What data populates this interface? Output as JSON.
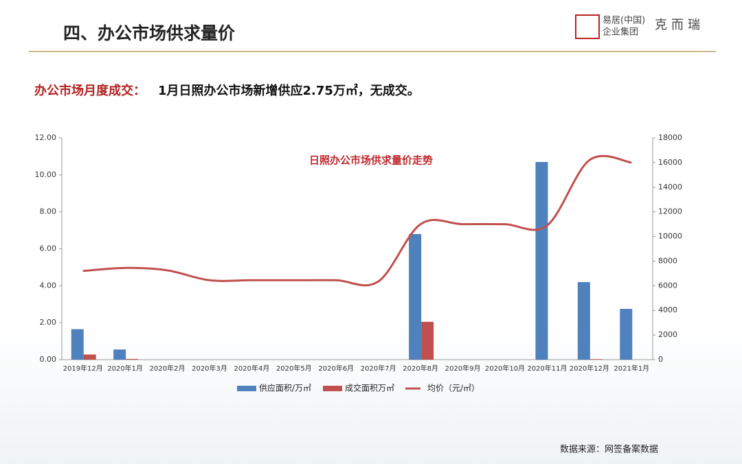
{
  "header": {
    "title": "四、办公市场供求量价",
    "logo_cn_1": "易居(中国)",
    "logo_cn_2": "企业集团",
    "logo_brand": "克而瑞"
  },
  "subtitle": {
    "lead": "办公市场月度成交：",
    "text": "1月日照办公市场新增供应2.75万㎡，无成交。"
  },
  "source": "数据来源：网签备案数据",
  "chart_data": {
    "type": "bar",
    "title": "日照办公市场供求量价走势",
    "categories": [
      "2019年12月",
      "2020年1月",
      "2020年2月",
      "2020年3月",
      "2020年4月",
      "2020年5月",
      "2020年6月",
      "2020年7月",
      "2020年8月",
      "2020年9月",
      "2020年10月",
      "2020年11月",
      "2020年12月",
      "2021年1月"
    ],
    "series": [
      {
        "name": "供应面积/万㎡",
        "color": "#4f81bd",
        "values": [
          1.65,
          0.55,
          0,
          0,
          0,
          0,
          0,
          0,
          6.8,
          0,
          0,
          10.7,
          4.2,
          2.75
        ]
      },
      {
        "name": "成交面积万㎡",
        "color": "#c0504d",
        "values": [
          0.28,
          0.04,
          0,
          0,
          0,
          0,
          0,
          0,
          2.05,
          0,
          0,
          0,
          0.03,
          0
        ]
      },
      {
        "name": "均价（元/㎡）",
        "color": "#c0504d",
        "type": "line",
        "axis": "y2",
        "values": [
          7200,
          7450,
          7250,
          6450,
          6450,
          6450,
          6450,
          6350,
          11000,
          11000,
          11000,
          10900,
          16200,
          16000
        ]
      }
    ],
    "ylim": [
      0,
      12
    ],
    "yticks": [
      {
        "value": 0,
        "label": "0.00"
      },
      {
        "value": 2,
        "label": "2.00"
      },
      {
        "value": 4,
        "label": "4.00"
      },
      {
        "value": 6,
        "label": "6.00"
      },
      {
        "value": 8,
        "label": "8.00"
      },
      {
        "value": 10,
        "label": "10.00"
      },
      {
        "value": 12,
        "label": "12.00"
      }
    ],
    "y2lim": [
      0,
      18000
    ],
    "y2ticks": [
      0,
      2000,
      4000,
      6000,
      8000,
      10000,
      12000,
      14000,
      16000,
      18000
    ],
    "legend": "bottom"
  }
}
